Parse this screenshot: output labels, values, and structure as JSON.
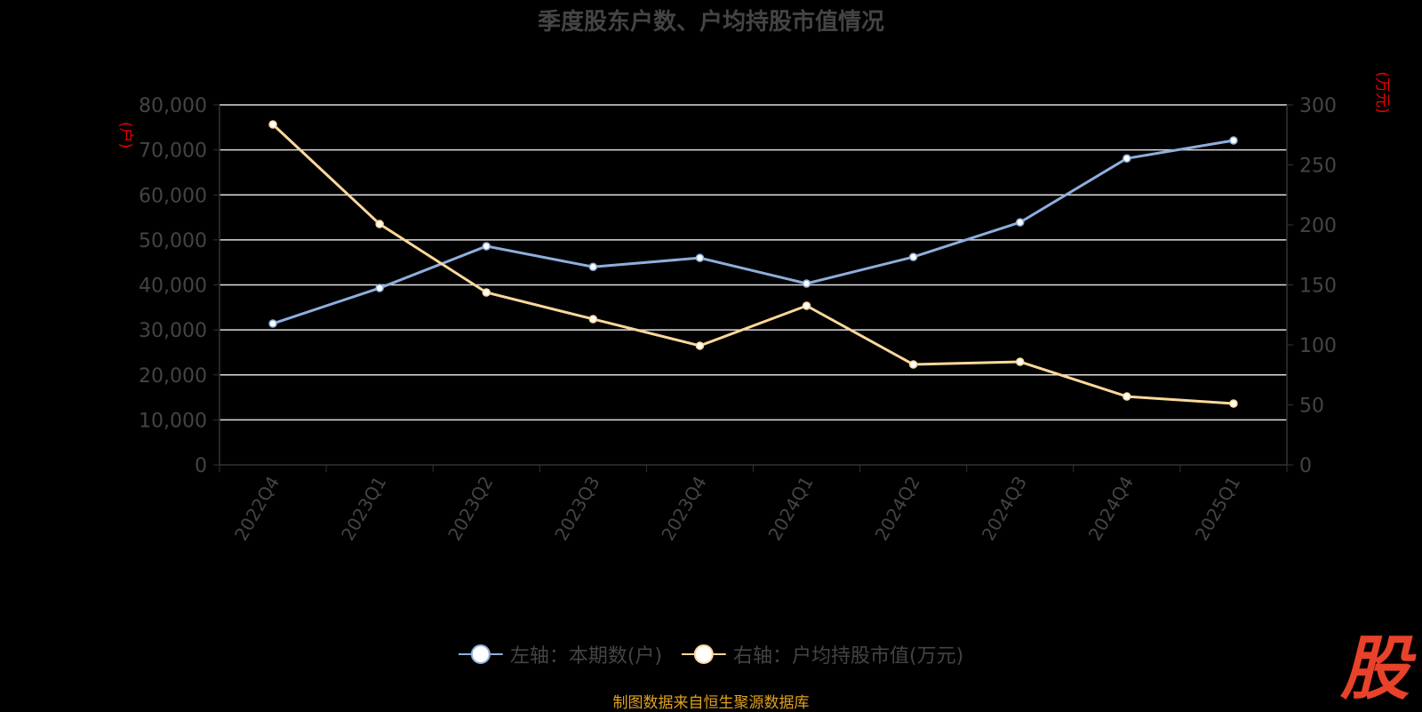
{
  "chart_data": {
    "type": "line",
    "title": "季度股东户数、户均持股市值情况",
    "categories": [
      "2022Q4",
      "2023Q1",
      "2023Q2",
      "2023Q3",
      "2023Q4",
      "2024Q1",
      "2024Q2",
      "2024Q3",
      "2024Q4",
      "2025Q1"
    ],
    "series": [
      {
        "name": "左轴：本期数(户)",
        "axis": "left",
        "color": "#8eaedc",
        "values": [
          31400,
          39300,
          48600,
          44000,
          46000,
          40300,
          46200,
          53900,
          68100,
          72100
        ]
      },
      {
        "name": "右轴：户均持股市值(万元)",
        "axis": "right",
        "color": "#fcd89a",
        "values": [
          283.7,
          200.7,
          143.7,
          121.5,
          99.3,
          132.6,
          83.7,
          85.9,
          57.0,
          51.1
        ]
      }
    ],
    "left_axis": {
      "label": "(户)",
      "ylim": [
        0,
        80000
      ],
      "ticks": [
        "0",
        "10,000",
        "20,000",
        "30,000",
        "40,000",
        "50,000",
        "60,000",
        "70,000",
        "80,000"
      ]
    },
    "right_axis": {
      "label": "(万元)",
      "ylim": [
        0,
        300
      ],
      "ticks": [
        "0",
        "50",
        "100",
        "150",
        "200",
        "250",
        "300"
      ]
    },
    "legend_position": "bottom"
  },
  "footer": "制图数据来自恒生聚源数据库",
  "logo": "股"
}
